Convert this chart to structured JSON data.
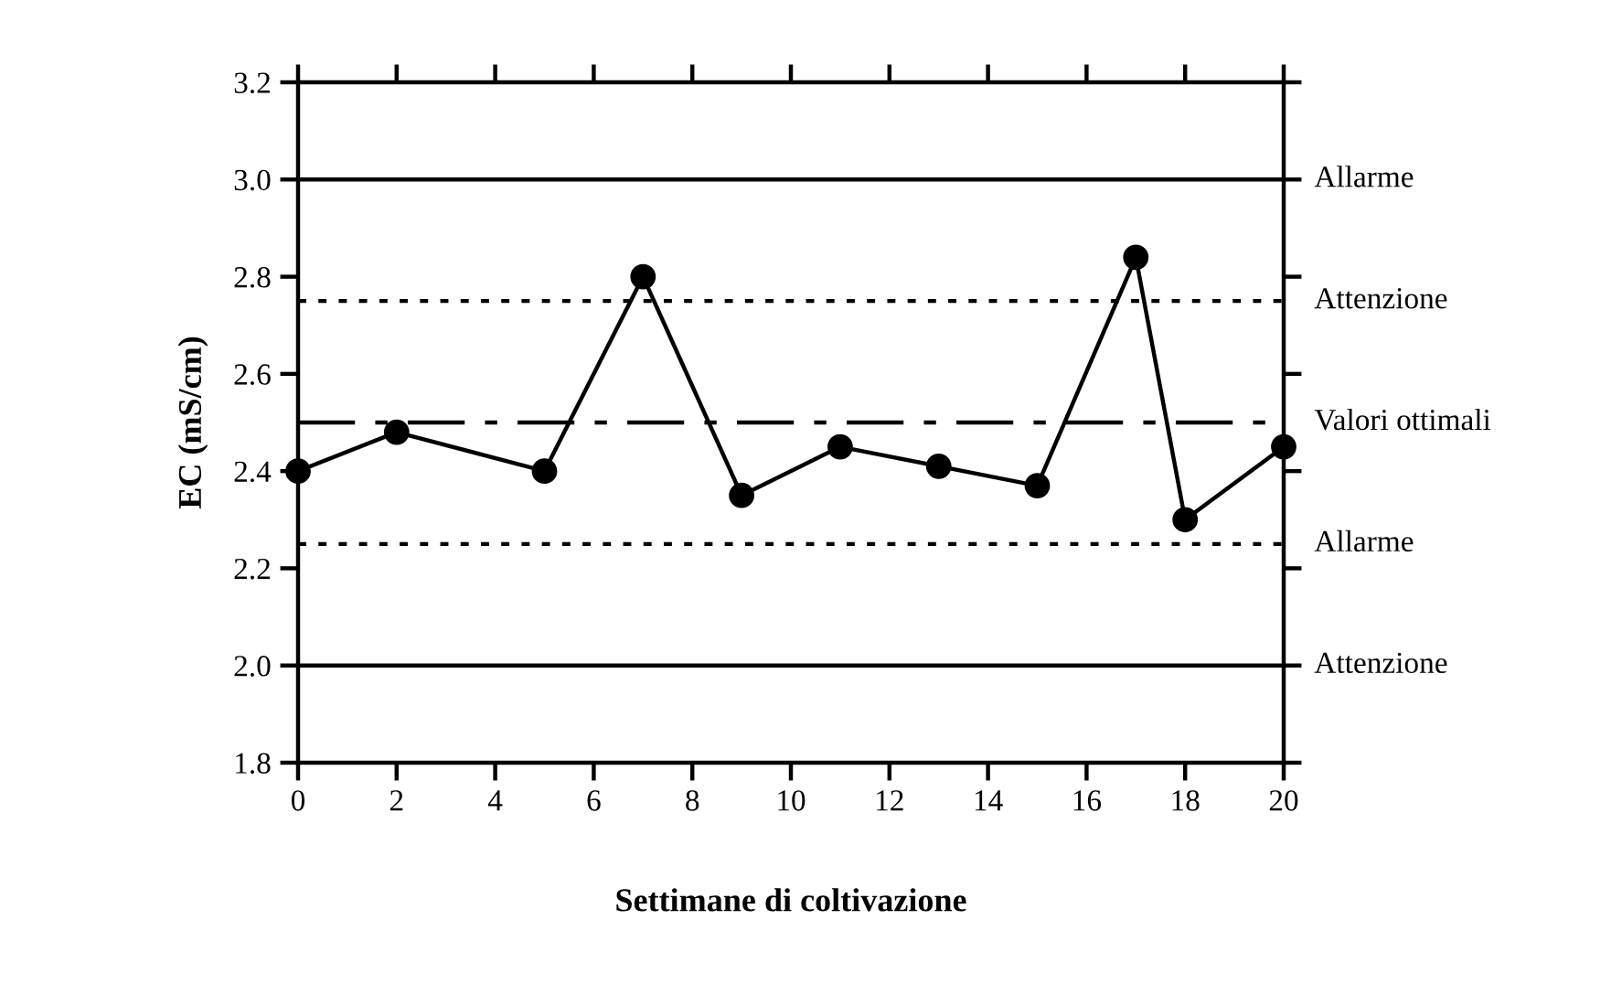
{
  "chart_data": {
    "type": "line",
    "xlabel": "Settimane di coltivazione",
    "ylabel": "EC (mS/cm)",
    "x": [
      0,
      2,
      5,
      7,
      9,
      11,
      13,
      15,
      17,
      18,
      20
    ],
    "series": [
      {
        "color": "#000000",
        "values": [
          2.4,
          2.48,
          2.4,
          2.8,
          2.35,
          2.45,
          2.41,
          2.37,
          2.84,
          2.3,
          2.45
        ]
      }
    ],
    "marker": "circle",
    "line_style": "solid",
    "xlim": [
      0,
      20
    ],
    "xticks": [
      0,
      2,
      4,
      6,
      8,
      10,
      12,
      14,
      16,
      18,
      20
    ],
    "ylim": [
      1.8,
      3.2
    ],
    "yticks": [
      1.8,
      {
        "value": 2,
        "label": "2.0"
      },
      2.2,
      2.4,
      2.6,
      2.8,
      {
        "value": 3,
        "label": "3.0"
      },
      3.2
    ],
    "ref_lines": [
      {
        "axis": "y",
        "value": 3.0,
        "label": "Allarme",
        "color": "#000000",
        "line_style": "solid"
      },
      {
        "axis": "y",
        "value": 2.75,
        "label": "Attenzione",
        "color": "#000000",
        "line_style": "dotted"
      },
      {
        "axis": "y",
        "value": 2.5,
        "label": "Valori ottimali",
        "color": "#000000",
        "line_style": "dashdot"
      },
      {
        "axis": "y",
        "value": 2.25,
        "label": "Allarme",
        "color": "#000000",
        "line_style": "dotted"
      },
      {
        "axis": "y",
        "value": 2.0,
        "label": "Attenzione",
        "color": "#000000",
        "line_style": "solid"
      }
    ],
    "grid": false
  }
}
